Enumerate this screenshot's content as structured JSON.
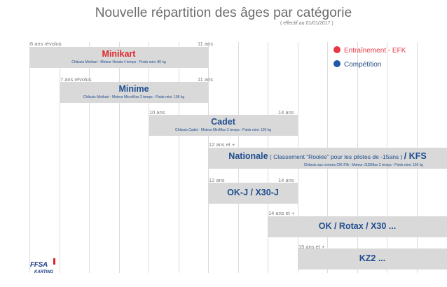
{
  "title": "Nouvelle répartition des âges par catégorie",
  "subtitle": "( effectif au 01/01/2017 )",
  "legend": [
    {
      "label": "Entraînement - EFK",
      "color": "#e63946"
    },
    {
      "label": "Compétition",
      "color": "#1f5aa6"
    }
  ],
  "categories": [
    {
      "name": "Minikart",
      "name_color": "#e1262d",
      "spec": "Châssis Minikart - Moteur Honda 4 temps  -  Poids mini. 86 kg",
      "age_start": "6 ans révolus",
      "age_end": "11 ans"
    },
    {
      "name": "Minime",
      "spec": "Châssis Minikart - Moteur MicroMax 2 temps - Poids mini. 105 kg",
      "age_start": "7 ans révolus",
      "age_end": "11 ans"
    },
    {
      "name": "Cadet",
      "spec": "Châssis Cadet - Moteur MiniMax 2 temps - Poids mini. 130 kg",
      "age_start": "10 ans",
      "age_end": "14 ans"
    },
    {
      "name_left": "Nationale",
      "note": " ( Classement “Rookie” pour les pilotes de -15ans ) ",
      "name_right": "/ KFS",
      "spec": "Châssis aux normes CIK-FIA - Moteur J125Max 2 temps - Poids mini. 150 kg",
      "age_start": "12 ans et +"
    },
    {
      "name": "OK-J / X30-J",
      "age_start": "12 ans",
      "age_end": "14 ans"
    },
    {
      "name": "OK / Rotax / X30 ...",
      "age_start": "14 ans et +"
    },
    {
      "name": "KZ2 ...",
      "age_start": "15 ans et +"
    }
  ],
  "logo": {
    "main": "FFSA",
    "sub": "KARTING"
  }
}
